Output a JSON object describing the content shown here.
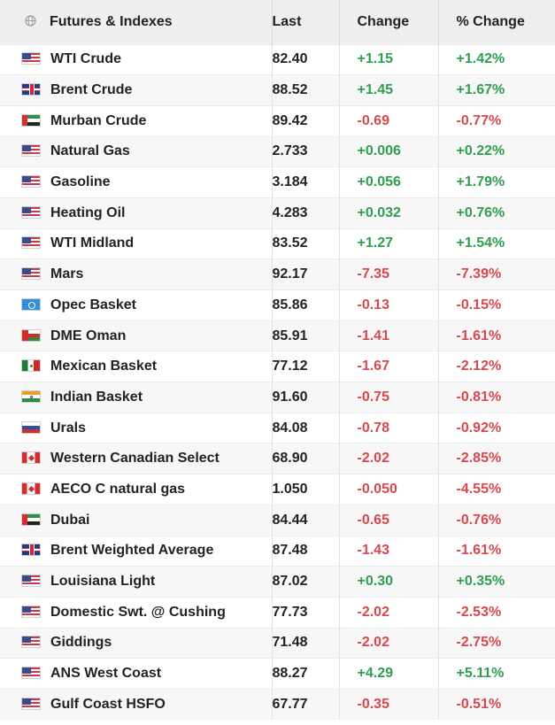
{
  "table": {
    "headers": {
      "name": "Futures & Indexes",
      "last": "Last",
      "change": "Change",
      "pct_change": "% Change"
    },
    "header_icon": "globe-icon",
    "colors": {
      "positive": "#2e9e4f",
      "negative": "#d8484e"
    },
    "rows": [
      {
        "name": "WTI Crude",
        "flag": "us",
        "last": "82.40",
        "change": "+1.15",
        "pct": "+1.42%",
        "dir": "pos"
      },
      {
        "name": "Brent Crude",
        "flag": "uk",
        "last": "88.52",
        "change": "+1.45",
        "pct": "+1.67%",
        "dir": "pos"
      },
      {
        "name": "Murban Crude",
        "flag": "ae",
        "last": "89.42",
        "change": "-0.69",
        "pct": "-0.77%",
        "dir": "neg"
      },
      {
        "name": "Natural Gas",
        "flag": "us",
        "last": "2.733",
        "change": "+0.006",
        "pct": "+0.22%",
        "dir": "pos"
      },
      {
        "name": "Gasoline",
        "flag": "us",
        "last": "3.184",
        "change": "+0.056",
        "pct": "+1.79%",
        "dir": "pos"
      },
      {
        "name": "Heating Oil",
        "flag": "us",
        "last": "4.283",
        "change": "+0.032",
        "pct": "+0.76%",
        "dir": "pos"
      },
      {
        "name": "WTI Midland",
        "flag": "us",
        "last": "83.52",
        "change": "+1.27",
        "pct": "+1.54%",
        "dir": "pos"
      },
      {
        "name": "Mars",
        "flag": "us",
        "last": "92.17",
        "change": "-7.35",
        "pct": "-7.39%",
        "dir": "neg"
      },
      {
        "name": "Opec Basket",
        "flag": "opec",
        "last": "85.86",
        "change": "-0.13",
        "pct": "-0.15%",
        "dir": "neg"
      },
      {
        "name": "DME Oman",
        "flag": "om",
        "last": "85.91",
        "change": "-1.41",
        "pct": "-1.61%",
        "dir": "neg"
      },
      {
        "name": "Mexican Basket",
        "flag": "mx",
        "last": "77.12",
        "change": "-1.67",
        "pct": "-2.12%",
        "dir": "neg"
      },
      {
        "name": "Indian Basket",
        "flag": "in",
        "last": "91.60",
        "change": "-0.75",
        "pct": "-0.81%",
        "dir": "neg"
      },
      {
        "name": "Urals",
        "flag": "ru",
        "last": "84.08",
        "change": "-0.78",
        "pct": "-0.92%",
        "dir": "neg"
      },
      {
        "name": "Western Canadian Select",
        "flag": "ca",
        "last": "68.90",
        "change": "-2.02",
        "pct": "-2.85%",
        "dir": "neg"
      },
      {
        "name": "AECO C natural gas",
        "flag": "ca",
        "last": "1.050",
        "change": "-0.050",
        "pct": "-4.55%",
        "dir": "neg"
      },
      {
        "name": "Dubai",
        "flag": "ae",
        "last": "84.44",
        "change": "-0.65",
        "pct": "-0.76%",
        "dir": "neg"
      },
      {
        "name": "Brent Weighted Average",
        "flag": "uk",
        "last": "87.48",
        "change": "-1.43",
        "pct": "-1.61%",
        "dir": "neg"
      },
      {
        "name": "Louisiana Light",
        "flag": "us",
        "last": "87.02",
        "change": "+0.30",
        "pct": "+0.35%",
        "dir": "pos"
      },
      {
        "name": "Domestic Swt. @ Cushing",
        "flag": "us",
        "last": "77.73",
        "change": "-2.02",
        "pct": "-2.53%",
        "dir": "neg"
      },
      {
        "name": "Giddings",
        "flag": "us",
        "last": "71.48",
        "change": "-2.02",
        "pct": "-2.75%",
        "dir": "neg"
      },
      {
        "name": "ANS West Coast",
        "flag": "us",
        "last": "88.27",
        "change": "+4.29",
        "pct": "+5.11%",
        "dir": "pos"
      },
      {
        "name": "Gulf Coast HSFO",
        "flag": "us",
        "last": "67.77",
        "change": "-0.35",
        "pct": "-0.51%",
        "dir": "neg"
      }
    ]
  }
}
